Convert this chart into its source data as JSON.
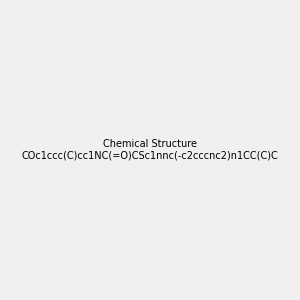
{
  "smiles": "COc1ccc(C)cc1NC(=O)CSc1nnc(-c2cccnc2)n1CC(C)C",
  "image_size": 300,
  "background_color": "#f0f0f0",
  "title": ""
}
